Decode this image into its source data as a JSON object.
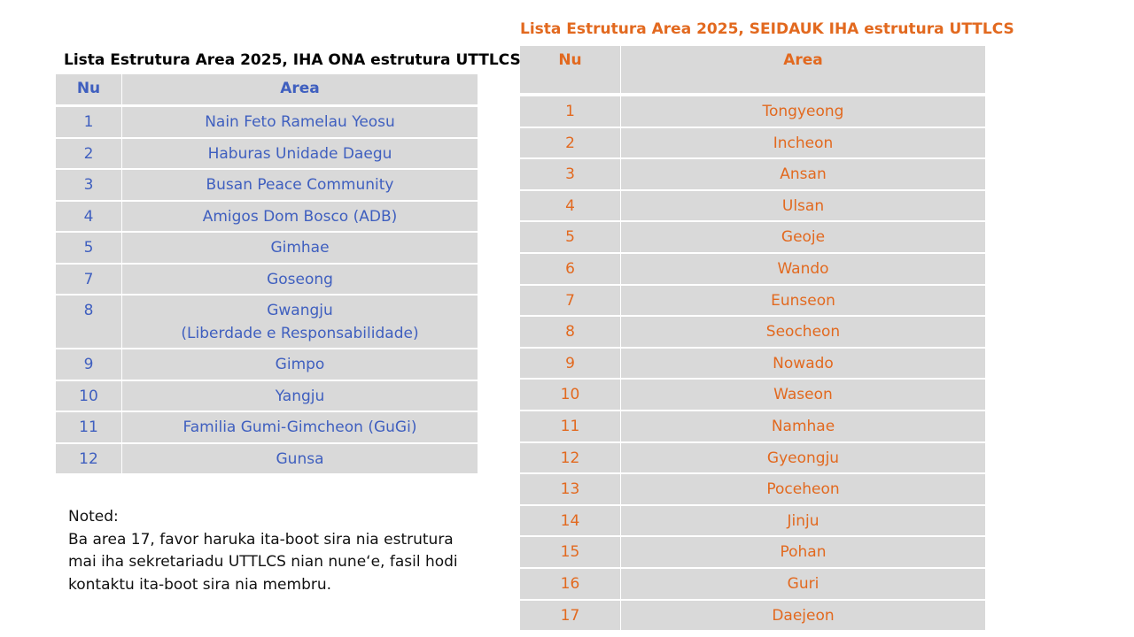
{
  "left": {
    "title": "Lista Estrutura Area 2025, IHA ONA estrutura UTTLCS",
    "header": [
      "Nu",
      "Area"
    ],
    "rows": [
      [
        1,
        "Nain Feto Ramelau Yeosu"
      ],
      [
        2,
        "Haburas Unidade Daegu"
      ],
      [
        3,
        "Busan Peace Community"
      ],
      [
        4,
        "Amigos Dom Bosco (ADB)"
      ],
      [
        5,
        "Gimhae"
      ],
      [
        7,
        "Goseong"
      ],
      [
        8,
        [
          "Gwangju",
          "(Liberdade e Responsabilidade)"
        ]
      ],
      [
        9,
        "Gimpo"
      ],
      [
        10,
        "Yangju"
      ],
      [
        11,
        "Familia Gumi-Gimcheon (GuGi)"
      ],
      [
        12,
        "Gunsa"
      ]
    ]
  },
  "right": {
    "title": "Lista Estrutura Area 2025, SEIDAUK IHA estrutura UTTLCS",
    "header": [
      "Nu",
      "Area"
    ],
    "rows": [
      [
        1,
        "Tongyeong"
      ],
      [
        2,
        "Incheon"
      ],
      [
        3,
        "Ansan"
      ],
      [
        4,
        "Ulsan"
      ],
      [
        5,
        "Geoje"
      ],
      [
        6,
        "Wando"
      ],
      [
        7,
        "Eunseon"
      ],
      [
        8,
        "Seocheon"
      ],
      [
        9,
        "Nowado"
      ],
      [
        10,
        "Waseon"
      ],
      [
        11,
        "Namhae"
      ],
      [
        12,
        "Gyeongju"
      ],
      [
        13,
        "Poceheon"
      ],
      [
        14,
        "Jinju"
      ],
      [
        15,
        "Pohan"
      ],
      [
        16,
        "Guri"
      ],
      [
        17,
        "Daejeon"
      ]
    ]
  },
  "note": {
    "label": "Noted:",
    "lines": [
      "Ba area 17, favor haruka ita-boot sira nia estrutura",
      "mai iha sekretariadu UTTLCS nian nune‘e, fasil hodi",
      "kontaktu ita-boot sira nia membru."
    ]
  }
}
